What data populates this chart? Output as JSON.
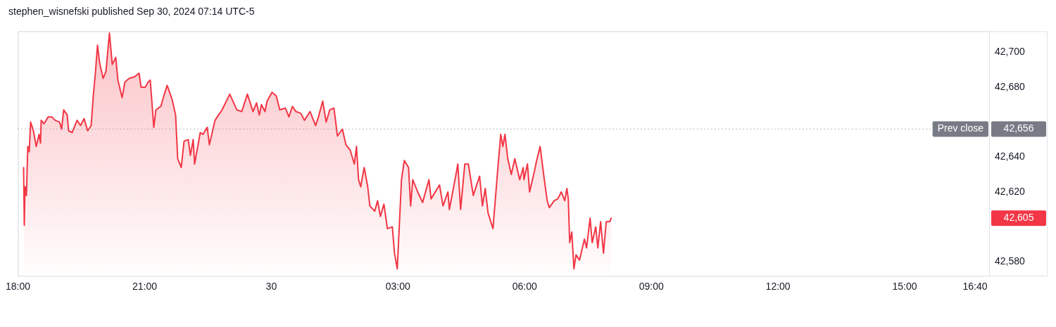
{
  "chart_data": {
    "type": "area",
    "title": "stephen_wisnefski published Sep 30, 2024 07:14 UTC-5",
    "x": [
      "2024-09-29T18:08",
      "2024-09-29T18:09",
      "2024-09-29T18:10",
      "2024-09-29T18:12",
      "2024-09-29T18:14",
      "2024-09-29T18:16",
      "2024-09-29T18:18",
      "2024-09-29T18:22",
      "2024-09-29T18:26",
      "2024-09-29T18:30",
      "2024-09-29T18:32",
      "2024-09-29T18:33",
      "2024-09-29T18:37",
      "2024-09-29T18:43",
      "2024-09-29T18:48",
      "2024-09-29T18:53",
      "2024-09-29T18:59",
      "2024-09-29T19:02",
      "2024-09-29T19:05",
      "2024-09-29T19:10",
      "2024-09-29T19:12",
      "2024-09-29T19:17",
      "2024-09-29T19:24",
      "2024-09-29T19:29",
      "2024-09-29T19:34",
      "2024-09-29T19:39",
      "2024-09-29T19:44",
      "2024-09-29T19:47",
      "2024-09-29T19:50",
      "2024-09-29T19:53",
      "2024-09-29T19:56",
      "2024-09-29T20:01",
      "2024-09-29T20:05",
      "2024-09-29T20:10",
      "2024-09-29T20:14",
      "2024-09-29T20:19",
      "2024-09-29T20:22",
      "2024-09-29T20:28",
      "2024-09-29T20:32",
      "2024-09-29T20:38",
      "2024-09-29T20:46",
      "2024-09-29T20:52",
      "2024-09-29T20:55",
      "2024-09-29T21:01",
      "2024-09-29T21:05",
      "2024-09-29T21:08",
      "2024-09-29T21:13",
      "2024-09-29T21:16",
      "2024-09-29T21:23",
      "2024-09-29T21:28",
      "2024-09-29T21:32",
      "2024-09-29T21:39",
      "2024-09-29T21:44",
      "2024-09-29T21:47",
      "2024-09-29T21:52",
      "2024-09-29T21:56",
      "2024-09-29T22:02",
      "2024-09-29T22:05",
      "2024-09-29T22:09",
      "2024-09-29T22:11",
      "2024-09-29T22:19",
      "2024-09-29T22:23",
      "2024-09-29T22:29",
      "2024-09-29T22:32",
      "2024-09-29T22:40",
      "2024-09-29T22:45",
      "2024-09-29T22:50",
      "2024-09-29T23:01",
      "2024-09-29T23:11",
      "2024-09-29T23:18",
      "2024-09-29T23:26",
      "2024-09-29T23:34",
      "2024-09-29T23:39",
      "2024-09-29T23:43",
      "2024-09-29T23:46",
      "2024-09-29T23:51",
      "2024-09-29T23:54",
      "2024-09-30T00:01",
      "2024-09-30T00:07",
      "2024-09-30T00:12",
      "2024-09-30T00:20",
      "2024-09-30T00:25",
      "2024-09-30T00:30",
      "2024-09-30T00:35",
      "2024-09-30T00:42",
      "2024-09-30T00:47",
      "2024-09-30T00:55",
      "2024-09-30T01:03",
      "2024-09-30T01:07",
      "2024-09-30T01:13",
      "2024-09-30T01:18",
      "2024-09-30T01:23",
      "2024-09-30T01:29",
      "2024-09-30T01:34",
      "2024-09-30T01:41",
      "2024-09-30T01:46",
      "2024-09-30T01:52",
      "2024-09-30T01:58",
      "2024-09-30T02:01",
      "2024-09-30T02:04",
      "2024-09-30T02:07",
      "2024-09-30T02:12",
      "2024-09-30T02:17",
      "2024-09-30T02:20",
      "2024-09-30T02:27",
      "2024-09-30T02:31",
      "2024-09-30T02:35",
      "2024-09-30T02:40",
      "2024-09-30T02:45",
      "2024-09-30T02:52",
      "2024-09-30T02:55",
      "2024-09-30T02:59",
      "2024-09-30T03:05",
      "2024-09-30T03:09",
      "2024-09-30T03:15",
      "2024-09-30T03:18",
      "2024-09-30T03:21",
      "2024-09-30T03:28",
      "2024-09-30T03:35",
      "2024-09-30T03:44",
      "2024-09-30T03:47",
      "2024-09-30T03:59",
      "2024-09-30T04:04",
      "2024-09-30T04:11",
      "2024-09-30T04:13",
      "2024-09-30T04:22",
      "2024-09-30T04:25",
      "2024-09-30T04:29",
      "2024-09-30T04:35",
      "2024-09-30T04:40",
      "2024-09-30T04:47",
      "2024-09-30T04:56",
      "2024-09-30T05:00",
      "2024-09-30T05:04",
      "2024-09-30T05:08",
      "2024-09-30T05:15",
      "2024-09-30T05:22",
      "2024-09-30T05:26",
      "2024-09-30T05:29",
      "2024-09-30T05:32",
      "2024-09-30T05:36",
      "2024-09-30T05:41",
      "2024-09-30T05:46",
      "2024-09-30T05:53",
      "2024-09-30T05:58",
      "2024-09-30T05:59",
      "2024-09-30T06:04",
      "2024-09-30T06:07",
      "2024-09-30T06:14",
      "2024-09-30T06:17",
      "2024-09-30T06:22",
      "2024-09-30T06:27",
      "2024-09-30T06:32",
      "2024-09-30T06:35",
      "2024-09-30T06:42",
      "2024-09-30T06:47",
      "2024-09-30T06:52",
      "2024-09-30T06:57",
      "2024-09-30T07:00",
      "2024-09-30T07:02",
      "2024-09-30T07:04",
      "2024-09-30T07:07",
      "2024-09-30T07:10",
      "2024-09-30T07:13",
      "2024-09-30T07:18",
      "2024-09-30T07:22",
      "2024-09-30T07:25",
      "2024-09-30T07:28",
      "2024-09-30T07:33",
      "2024-09-30T07:36",
      "2024-09-30T07:41",
      "2024-09-30T07:44",
      "2024-09-30T07:48",
      "2024-09-30T07:52",
      "2024-09-30T07:56",
      "2024-09-30T08:01",
      "2024-09-30T08:03"
    ],
    "series": [
      {
        "color": "#f23645",
        "values": [
          42634,
          42601,
          42623,
          42618,
          42646,
          42643,
          42660,
          42655,
          42646,
          42653,
          42648,
          42661,
          42659,
          42663,
          42663,
          42661,
          42660,
          42656,
          42667,
          42664,
          42655,
          42654,
          42661,
          42658,
          42662,
          42655,
          42658,
          42675,
          42688,
          42704,
          42694,
          42685,
          42689,
          42711,
          42693,
          42697,
          42684,
          42674,
          42683,
          42685,
          42686,
          42688,
          42680,
          42680,
          42683,
          42684,
          42657,
          42667,
          42669,
          42676,
          42681,
          42673,
          42664,
          42639,
          42634,
          42649,
          42650,
          42641,
          42650,
          42636,
          42654,
          42653,
          42657,
          42647,
          42661,
          42664,
          42667,
          42676,
          42667,
          42666,
          42676,
          42666,
          42671,
          42664,
          42670,
          42666,
          42672,
          42677,
          42675,
          42667,
          42668,
          42663,
          42669,
          42666,
          42665,
          42661,
          42666,
          42658,
          42663,
          42672,
          42660,
          42667,
          42668,
          42652,
          42656,
          42647,
          42644,
          42636,
          42646,
          42627,
          42623,
          42634,
          42623,
          42612,
          42609,
          42615,
          42606,
          42613,
          42599,
          42600,
          42585,
          42576,
          42627,
          42638,
          42634,
          42612,
          42627,
          42620,
          42614,
          42627,
          42616,
          42624,
          42612,
          42620,
          42610,
          42629,
          42636,
          42610,
          42636,
          42636,
          42618,
          42629,
          42612,
          42622,
          42608,
          42599,
          42634,
          42653,
          42646,
          42653,
          42639,
          42630,
          42639,
          42627,
          42634,
          42627,
          42636,
          42620,
          42632,
          42638,
          42646,
          42630,
          42615,
          42611,
          42615,
          42616,
          42620,
          42615,
          42622,
          42616,
          42591,
          42597,
          42576,
          42584,
          42581,
          42588,
          42593,
          42588,
          42605,
          42591,
          42600,
          42588,
          42603,
          42585,
          42603,
          42603,
          42605
        ]
      }
    ],
    "xlim": [
      "2024-09-29T18:00",
      "2024-09-30T17:00"
    ],
    "xticks": [
      {
        "value": "2024-09-29T18:00",
        "label": "18:00"
      },
      {
        "value": "2024-09-29T21:00",
        "label": "21:00"
      },
      {
        "value": "2024-09-30T00:00",
        "label": "30"
      },
      {
        "value": "2024-09-30T03:00",
        "label": "03:00"
      },
      {
        "value": "2024-09-30T06:00",
        "label": "06:00"
      },
      {
        "value": "2024-09-30T09:00",
        "label": "09:00"
      },
      {
        "value": "2024-09-30T12:00",
        "label": "12:00"
      },
      {
        "value": "2024-09-30T15:00",
        "label": "15:00"
      },
      {
        "value": "2024-09-30T16:40",
        "label": "16:40"
      }
    ],
    "ylim": [
      42572,
      42712
    ],
    "yticks": [
      {
        "value": 42580,
        "label": "42,580"
      },
      {
        "value": 42620,
        "label": "42,620"
      },
      {
        "value": 42640,
        "label": "42,640"
      },
      {
        "value": 42680,
        "label": "42,680"
      },
      {
        "value": 42700,
        "label": "42,700"
      }
    ],
    "grid": false,
    "ref_lines": [
      {
        "axis": "y",
        "value": 42656,
        "label": "Prev close",
        "color": "#787b86",
        "line_style": "dotted"
      }
    ],
    "annotations": [
      "42,656",
      "42,605"
    ]
  }
}
